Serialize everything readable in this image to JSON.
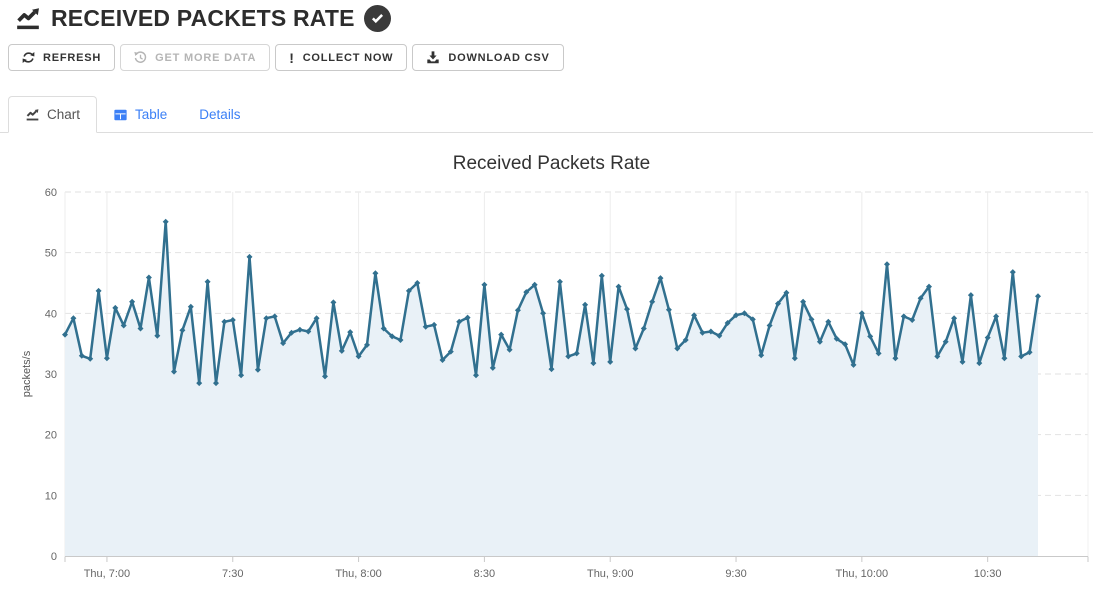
{
  "header": {
    "title": "RECEIVED PACKETS RATE"
  },
  "toolbar": {
    "buttons": [
      {
        "label": "REFRESH",
        "icon": "refresh-icon",
        "disabled": false
      },
      {
        "label": "GET MORE DATA",
        "icon": "history-icon",
        "disabled": true
      },
      {
        "label": "COLLECT NOW",
        "icon": "exclamation-icon",
        "disabled": false
      },
      {
        "label": "DOWNLOAD CSV",
        "icon": "download-icon",
        "disabled": false
      }
    ]
  },
  "tabs": [
    {
      "label": "Chart",
      "icon": "chart-line-icon",
      "active": true
    },
    {
      "label": "Table",
      "icon": "table-icon",
      "active": false
    },
    {
      "label": "Details",
      "icon": null,
      "active": false
    }
  ],
  "chart_data": {
    "type": "area",
    "title": "Received Packets Rate",
    "ylabel": "packets/s",
    "ylim": [
      0,
      60
    ],
    "yticks": [
      0,
      10,
      20,
      30,
      40,
      50,
      60
    ],
    "x_tick_labels": [
      "Thu, 7:00",
      "7:30",
      "Thu, 8:00",
      "8:30",
      "Thu, 9:00",
      "9:30",
      "Thu, 10:00",
      "10:30"
    ],
    "x_tick_indices": [
      5,
      20,
      35,
      50,
      65,
      80,
      95,
      110
    ],
    "grid": true,
    "legend": "none",
    "line_color": "#31708f",
    "fill_color": "#e9f1f7",
    "values": [
      36.5,
      39.2,
      33.0,
      32.5,
      43.7,
      32.6,
      40.9,
      38.0,
      41.9,
      37.5,
      45.9,
      36.3,
      55.1,
      30.4,
      37.2,
      41.1,
      28.5,
      45.2,
      28.5,
      38.6,
      38.9,
      29.8,
      49.3,
      30.7,
      39.2,
      39.5,
      35.1,
      36.8,
      37.3,
      37.0,
      39.2,
      29.6,
      41.8,
      33.8,
      36.9,
      32.9,
      34.8,
      46.6,
      37.5,
      36.2,
      35.6,
      43.7,
      45.0,
      37.8,
      38.1,
      32.3,
      33.7,
      38.6,
      39.3,
      29.8,
      44.7,
      31.0,
      36.5,
      34.0,
      40.5,
      43.5,
      44.7,
      40.0,
      30.8,
      45.2,
      32.9,
      33.4,
      41.4,
      31.8,
      46.2,
      32.0,
      44.4,
      40.7,
      34.2,
      37.5,
      41.9,
      45.8,
      40.6,
      34.2,
      35.6,
      39.7,
      36.8,
      37.0,
      36.3,
      38.4,
      39.7,
      40.0,
      39.0,
      33.1,
      38.0,
      41.6,
      43.4,
      32.6,
      41.9,
      39.0,
      35.3,
      38.6,
      35.8,
      34.9,
      31.5,
      40.0,
      36.2,
      33.4,
      48.1,
      32.6,
      39.5,
      38.9,
      42.5,
      44.4,
      32.9,
      35.3,
      39.2,
      32.0,
      43.0,
      31.8,
      36.0,
      39.5,
      32.6,
      46.8,
      32.9,
      33.6,
      42.8
    ]
  },
  "colors": {
    "accent_blue": "#3c80f6",
    "series_line": "#31708f",
    "series_fill": "#e9f1f7",
    "axis_text": "#666666",
    "border": "#dddddd"
  }
}
